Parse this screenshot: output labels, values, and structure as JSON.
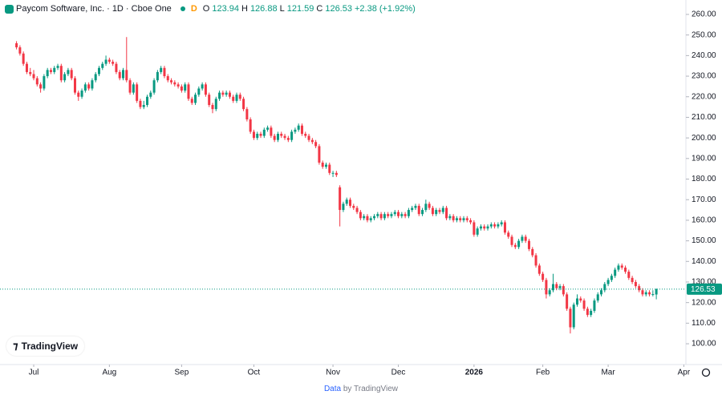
{
  "chart_data": {
    "type": "candlestick",
    "title": "Paycom Software, Inc. · 1D · Cboe One",
    "badge": "D",
    "ohlc_labels": [
      "O",
      "H",
      "L",
      "C"
    ],
    "change": "+2.38",
    "change_pct": "(+1.92%)",
    "up_color": "#089981",
    "down_color": "#f23645",
    "grid": false,
    "xlim": [
      -4.8,
      194.6
    ],
    "xticks": [
      {
        "value": 5,
        "label": "Jul"
      },
      {
        "value": 27,
        "label": "Aug"
      },
      {
        "value": 48,
        "label": "Sep"
      },
      {
        "value": 69,
        "label": "Oct"
      },
      {
        "value": 92,
        "label": "Nov"
      },
      {
        "value": 111,
        "label": "Dec"
      },
      {
        "value": 133,
        "label": "2026"
      },
      {
        "value": 153,
        "label": "Feb"
      },
      {
        "value": 172,
        "label": "Mar"
      },
      {
        "value": 194,
        "label": "Apr"
      }
    ],
    "ylim": [
      89.9,
      267
    ],
    "yticks": [
      {
        "value": 100,
        "label": "100.00"
      },
      {
        "value": 110,
        "label": "110.00"
      },
      {
        "value": 120,
        "label": "120.00"
      },
      {
        "value": 130,
        "label": "130.00"
      },
      {
        "value": 140,
        "label": "140.00"
      },
      {
        "value": 150,
        "label": "150.00"
      },
      {
        "value": 160,
        "label": "160.00"
      },
      {
        "value": 170,
        "label": "170.00"
      },
      {
        "value": 180,
        "label": "180.00"
      },
      {
        "value": 190,
        "label": "190.00"
      },
      {
        "value": 200,
        "label": "200.00"
      },
      {
        "value": 210,
        "label": "210.00"
      },
      {
        "value": 220,
        "label": "220.00"
      },
      {
        "value": 230,
        "label": "230.00"
      },
      {
        "value": 240,
        "label": "240.00"
      },
      {
        "value": 250,
        "label": "250.00"
      },
      {
        "value": 260,
        "label": "260.00"
      }
    ],
    "ohlc": [
      [
        246,
        247,
        243,
        244
      ],
      [
        244,
        245,
        240,
        241
      ],
      [
        241,
        242,
        235,
        236
      ],
      [
        236,
        237,
        231,
        232
      ],
      [
        232,
        234,
        230,
        231
      ],
      [
        231,
        233,
        228,
        229
      ],
      [
        229,
        230,
        225,
        226
      ],
      [
        226,
        227,
        222,
        224
      ],
      [
        224,
        231,
        223,
        230
      ],
      [
        230,
        234,
        229,
        233
      ],
      [
        233,
        234,
        231,
        232
      ],
      [
        232,
        235,
        231,
        234
      ],
      [
        234,
        236,
        233,
        235
      ],
      [
        235,
        236,
        227,
        228
      ],
      [
        228,
        232,
        227,
        231
      ],
      [
        231,
        234,
        230,
        233
      ],
      [
        233,
        234,
        228,
        229
      ],
      [
        229,
        230,
        221,
        222
      ],
      [
        222,
        223,
        218,
        220
      ],
      [
        220,
        224,
        219,
        223
      ],
      [
        223,
        227,
        222,
        226
      ],
      [
        226,
        227,
        223,
        224
      ],
      [
        224,
        229,
        223,
        228
      ],
      [
        228,
        232,
        227,
        231
      ],
      [
        231,
        235,
        230,
        234
      ],
      [
        234,
        237,
        233,
        236
      ],
      [
        236,
        240,
        235,
        238
      ],
      [
        238,
        239,
        236,
        237
      ],
      [
        237,
        238,
        235,
        236
      ],
      [
        236,
        237,
        231,
        232
      ],
      [
        232,
        233,
        228,
        229
      ],
      [
        229,
        234,
        228,
        233
      ],
      [
        233,
        249,
        227,
        228
      ],
      [
        228,
        229,
        221,
        222
      ],
      [
        222,
        227,
        221,
        226
      ],
      [
        226,
        227,
        217,
        218
      ],
      [
        218,
        219,
        214,
        215
      ],
      [
        215,
        218,
        214,
        216
      ],
      [
        216,
        221,
        215,
        220
      ],
      [
        220,
        223,
        219,
        222
      ],
      [
        222,
        229,
        221,
        228
      ],
      [
        228,
        233,
        227,
        232
      ],
      [
        232,
        235,
        231,
        234
      ],
      [
        234,
        235,
        229,
        230
      ],
      [
        230,
        231,
        227,
        228
      ],
      [
        228,
        229,
        226,
        227
      ],
      [
        227,
        228,
        225,
        226
      ],
      [
        226,
        227,
        224,
        225
      ],
      [
        225,
        226,
        222,
        223
      ],
      [
        223,
        227,
        222,
        226
      ],
      [
        226,
        227,
        218,
        219
      ],
      [
        219,
        220,
        216,
        217
      ],
      [
        217,
        222,
        216,
        221
      ],
      [
        221,
        225,
        220,
        224
      ],
      [
        224,
        227,
        223,
        226
      ],
      [
        226,
        227,
        220,
        221
      ],
      [
        221,
        222,
        215,
        216
      ],
      [
        216,
        217,
        212,
        214
      ],
      [
        214,
        220,
        213,
        219
      ],
      [
        219,
        223,
        218,
        222
      ],
      [
        222,
        223,
        220,
        221
      ],
      [
        221,
        223,
        220,
        222
      ],
      [
        222,
        223,
        219,
        220
      ],
      [
        220,
        221,
        217,
        218
      ],
      [
        218,
        222,
        217,
        221
      ],
      [
        221,
        222,
        218,
        219
      ],
      [
        219,
        220,
        213,
        214
      ],
      [
        214,
        215,
        208,
        209
      ],
      [
        209,
        210,
        202,
        203
      ],
      [
        203,
        204,
        199,
        200
      ],
      [
        200,
        203,
        199,
        202
      ],
      [
        202,
        203,
        200,
        201
      ],
      [
        201,
        205,
        200,
        204
      ],
      [
        204,
        206,
        203,
        205
      ],
      [
        205,
        206,
        200,
        201
      ],
      [
        201,
        202,
        198,
        199
      ],
      [
        199,
        203,
        198,
        202
      ],
      [
        202,
        203,
        200,
        201
      ],
      [
        201,
        202,
        199,
        200
      ],
      [
        200,
        201,
        198,
        199
      ],
      [
        199,
        204,
        198,
        203
      ],
      [
        203,
        205,
        202,
        204
      ],
      [
        204,
        207,
        203,
        206
      ],
      [
        206,
        207,
        201,
        202
      ],
      [
        202,
        203,
        200,
        201
      ],
      [
        201,
        202,
        198,
        199
      ],
      [
        199,
        200,
        197,
        198
      ],
      [
        198,
        199,
        195,
        196
      ],
      [
        196,
        197,
        187,
        188
      ],
      [
        188,
        189,
        185,
        186
      ],
      [
        186,
        188,
        185,
        187
      ],
      [
        187,
        188,
        182,
        183
      ],
      [
        183,
        184,
        181,
        183
      ],
      [
        183,
        184,
        181,
        182
      ],
      [
        176,
        177,
        157,
        165
      ],
      [
        165,
        169,
        164,
        168
      ],
      [
        168,
        171,
        167,
        170
      ],
      [
        170,
        171,
        166,
        167
      ],
      [
        167,
        168,
        165,
        166
      ],
      [
        166,
        167,
        163,
        164
      ],
      [
        164,
        165,
        160,
        161
      ],
      [
        161,
        163,
        160,
        162
      ],
      [
        162,
        163,
        159,
        160
      ],
      [
        160,
        162,
        159,
        161
      ],
      [
        161,
        163,
        160,
        162
      ],
      [
        162,
        164,
        161,
        163
      ],
      [
        163,
        164,
        160,
        161
      ],
      [
        161,
        164,
        160,
        163
      ],
      [
        163,
        164,
        161,
        162
      ],
      [
        162,
        164,
        161,
        163
      ],
      [
        163,
        165,
        162,
        164
      ],
      [
        164,
        165,
        161,
        162
      ],
      [
        162,
        164,
        161,
        163
      ],
      [
        163,
        164,
        161,
        162
      ],
      [
        162,
        166,
        161,
        165
      ],
      [
        165,
        167,
        164,
        166
      ],
      [
        166,
        168,
        165,
        167
      ],
      [
        167,
        168,
        162,
        163
      ],
      [
        163,
        166,
        162,
        165
      ],
      [
        165,
        170,
        164,
        168
      ],
      [
        168,
        169,
        165,
        166
      ],
      [
        166,
        167,
        162,
        163
      ],
      [
        163,
        166,
        162,
        165
      ],
      [
        165,
        166,
        163,
        164
      ],
      [
        164,
        167,
        163,
        166
      ],
      [
        166,
        167,
        160,
        161
      ],
      [
        161,
        163,
        160,
        162
      ],
      [
        162,
        163,
        159,
        160
      ],
      [
        160,
        162,
        159,
        161
      ],
      [
        161,
        162,
        159,
        160
      ],
      [
        160,
        162,
        159,
        161
      ],
      [
        161,
        162,
        159,
        160
      ],
      [
        160,
        161,
        158,
        159
      ],
      [
        159,
        160,
        152,
        153
      ],
      [
        153,
        157,
        152,
        156
      ],
      [
        156,
        158,
        155,
        157
      ],
      [
        157,
        158,
        155,
        156
      ],
      [
        156,
        158,
        155,
        157
      ],
      [
        157,
        159,
        156,
        158
      ],
      [
        158,
        159,
        156,
        157
      ],
      [
        157,
        159,
        156,
        158
      ],
      [
        158,
        160,
        157,
        159
      ],
      [
        159,
        160,
        153,
        154
      ],
      [
        154,
        155,
        151,
        152
      ],
      [
        152,
        153,
        147,
        148
      ],
      [
        148,
        149,
        146,
        147
      ],
      [
        147,
        151,
        146,
        150
      ],
      [
        150,
        153,
        149,
        152
      ],
      [
        152,
        153,
        149,
        150
      ],
      [
        150,
        151,
        145,
        146
      ],
      [
        146,
        147,
        142,
        143
      ],
      [
        143,
        144,
        137,
        138
      ],
      [
        138,
        139,
        133,
        134
      ],
      [
        134,
        135,
        130,
        131
      ],
      [
        131,
        132,
        122,
        124
      ],
      [
        124,
        127,
        123,
        126
      ],
      [
        126,
        134,
        125,
        129
      ],
      [
        129,
        130,
        126,
        127
      ],
      [
        127,
        129,
        126,
        128
      ],
      [
        128,
        129,
        123,
        124
      ],
      [
        124,
        125,
        116,
        117
      ],
      [
        117,
        118,
        105,
        108
      ],
      [
        108,
        120,
        107,
        119
      ],
      [
        119,
        124,
        118,
        122
      ],
      [
        122,
        123,
        120,
        121
      ],
      [
        121,
        122,
        116,
        117
      ],
      [
        117,
        118,
        113,
        114
      ],
      [
        114,
        117,
        113,
        116
      ],
      [
        116,
        122,
        115,
        121
      ],
      [
        121,
        125,
        120,
        124
      ],
      [
        124,
        127,
        123,
        126
      ],
      [
        126,
        130,
        125,
        129
      ],
      [
        129,
        132,
        128,
        131
      ],
      [
        131,
        134,
        130,
        133
      ],
      [
        133,
        137,
        132,
        136
      ],
      [
        136,
        139,
        135,
        138
      ],
      [
        138,
        139,
        136,
        137
      ],
      [
        137,
        138,
        134,
        135
      ],
      [
        135,
        136,
        131,
        132
      ],
      [
        132,
        133,
        129,
        130
      ],
      [
        130,
        131,
        127,
        128
      ],
      [
        128,
        129,
        125,
        126
      ],
      [
        126,
        127,
        123,
        124
      ],
      [
        124,
        126,
        123,
        125
      ],
      [
        125,
        126,
        123,
        124
      ],
      [
        124,
        126,
        123,
        124.15
      ],
      [
        123.94,
        126.88,
        121.59,
        126.53
      ]
    ],
    "logo": "TradingView",
    "footer_link": "Data",
    "footer_by": "by TradingView"
  }
}
